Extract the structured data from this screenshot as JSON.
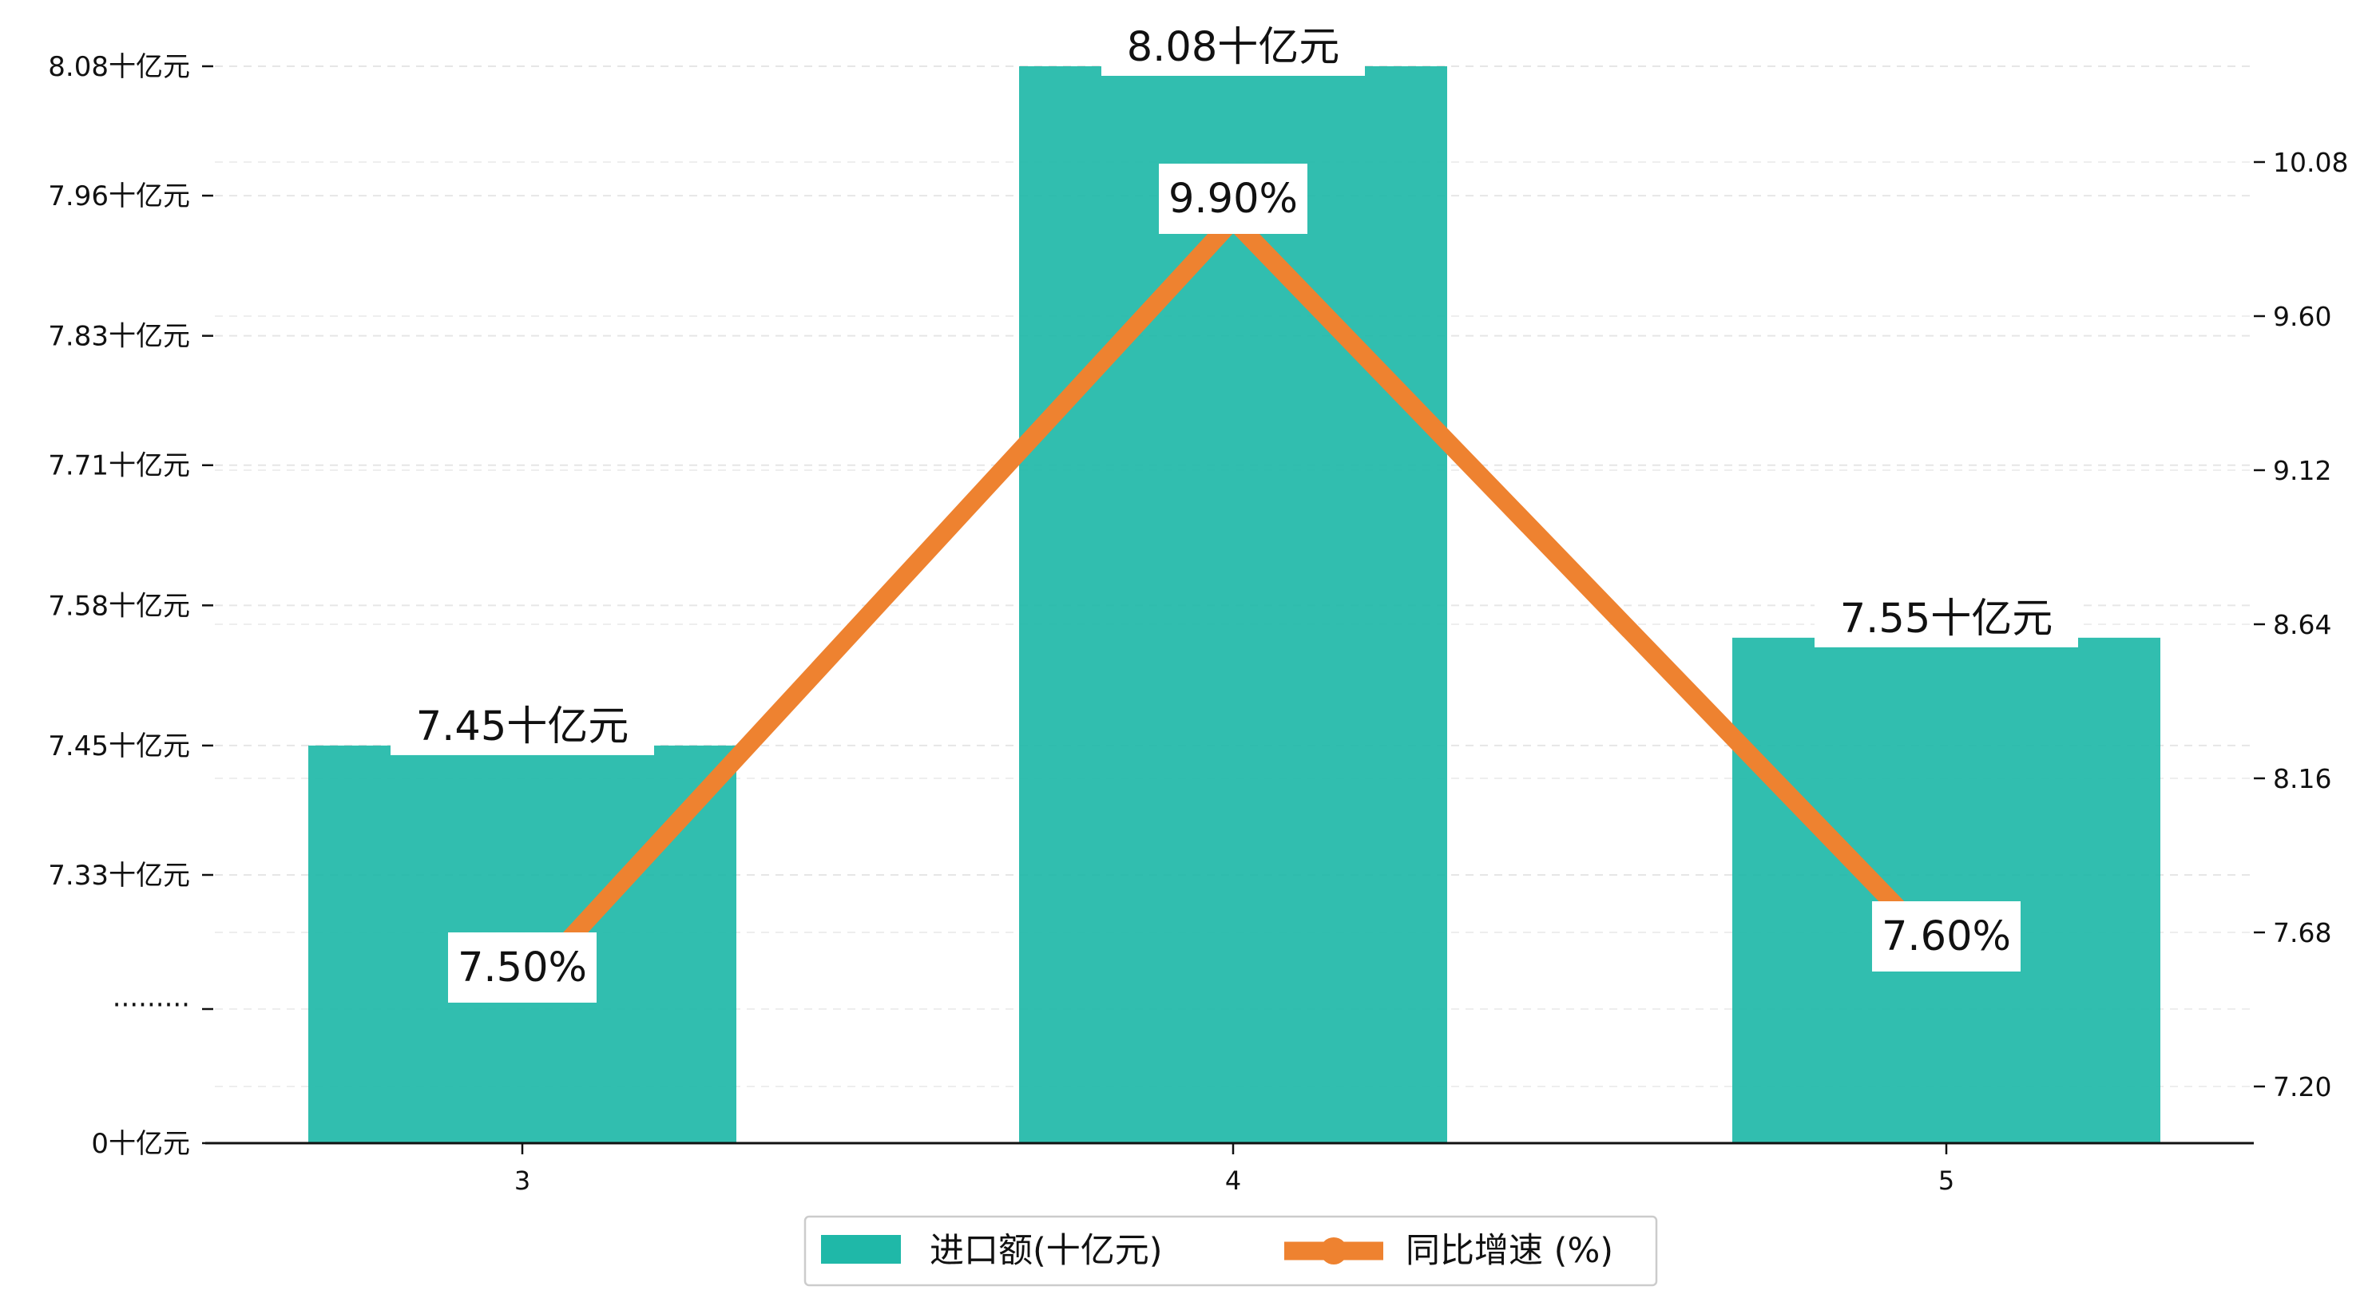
{
  "chart_data": {
    "type": "bar+line",
    "categories": [
      "3",
      "4",
      "5"
    ],
    "series": [
      {
        "name": "进口额(十亿元)",
        "type": "bar",
        "axis": "left",
        "values": [
          7.45,
          8.08,
          7.55
        ],
        "labels": [
          "7.45十亿元",
          "8.08十亿元",
          "7.55十亿元"
        ],
        "color": "#1FB8A8"
      },
      {
        "name": "同比增速 (%)",
        "type": "line",
        "axis": "right",
        "values": [
          7.5,
          9.9,
          7.6
        ],
        "labels": [
          "7.50%",
          "9.90%",
          "7.60%"
        ],
        "color": "#EE8230"
      }
    ],
    "y_left": {
      "break": true,
      "break_label": "·········",
      "ticks": [
        {
          "value": 0,
          "label": "0十亿元"
        },
        {
          "value": 7.33,
          "label": "7.33十亿元"
        },
        {
          "value": 7.45,
          "label": "7.45十亿元"
        },
        {
          "value": 7.58,
          "label": "7.58十亿元"
        },
        {
          "value": 7.71,
          "label": "7.71十亿元"
        },
        {
          "value": 7.83,
          "label": "7.83十亿元"
        },
        {
          "value": 7.96,
          "label": "7.96十亿元"
        },
        {
          "value": 8.08,
          "label": "8.08十亿元"
        }
      ]
    },
    "y_right": {
      "ticks": [
        {
          "value": 7.2,
          "label": "7.20"
        },
        {
          "value": 7.68,
          "label": "7.68"
        },
        {
          "value": 8.16,
          "label": "8.16"
        },
        {
          "value": 8.64,
          "label": "8.64"
        },
        {
          "value": 9.12,
          "label": "9.12"
        },
        {
          "value": 9.6,
          "label": "9.60"
        },
        {
          "value": 10.08,
          "label": "10.08"
        }
      ]
    },
    "grid": true,
    "legend": "bottom-center"
  }
}
